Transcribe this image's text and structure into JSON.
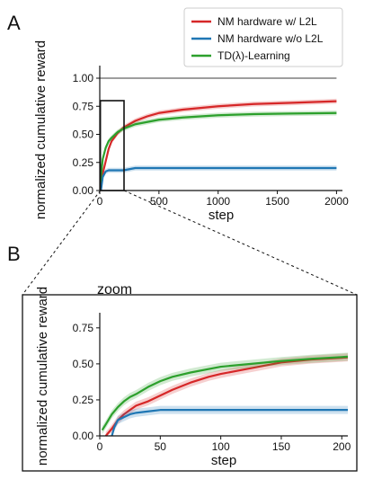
{
  "panels": {
    "a_label": "A",
    "b_label": "B",
    "zoom_title": "zoom"
  },
  "colors": {
    "red": "#d62728",
    "blue": "#1f77b4",
    "green": "#2ca02c",
    "reference": "#7f7f7f"
  },
  "legend": {
    "placement": "top-right",
    "items": [
      {
        "label": "NM hardware w/ L2L",
        "color": "#d62728"
      },
      {
        "label": "NM hardware w/o L2L",
        "color": "#1f77b4"
      },
      {
        "label": "TD(λ)-Learning",
        "color": "#2ca02c"
      }
    ]
  },
  "chart_data": [
    {
      "type": "line",
      "panel": "A",
      "xlabel": "step",
      "ylabel": "normalized cumulative reward",
      "xlim": [
        0,
        2050
      ],
      "ylim": [
        0,
        1.08
      ],
      "xticks": [
        0,
        500,
        1000,
        1500,
        2000
      ],
      "yticks": [
        "0.00",
        "0.25",
        "0.50",
        "0.75",
        "1.00"
      ],
      "reference_line": 1.0,
      "zoom_box": {
        "x": [
          5,
          205
        ],
        "y": [
          0,
          0.8
        ]
      },
      "series": [
        {
          "name": "NM hardware w/ L2L",
          "color": "#d62728",
          "x": [
            10,
            25,
            50,
            75,
            100,
            150,
            200,
            300,
            400,
            500,
            700,
            1000,
            1300,
            1600,
            2000
          ],
          "y": [
            0.05,
            0.15,
            0.26,
            0.37,
            0.44,
            0.51,
            0.56,
            0.62,
            0.66,
            0.69,
            0.72,
            0.75,
            0.77,
            0.78,
            0.795
          ]
        },
        {
          "name": "NM hardware w/o L2L",
          "color": "#1f77b4",
          "x": [
            10,
            25,
            50,
            75,
            100,
            150,
            200,
            300,
            500,
            800,
            1200,
            1600,
            2000
          ],
          "y": [
            0.0,
            0.12,
            0.17,
            0.18,
            0.18,
            0.18,
            0.18,
            0.2,
            0.2,
            0.2,
            0.2,
            0.2,
            0.2
          ]
        },
        {
          "name": "TD(λ)-Learning",
          "color": "#2ca02c",
          "x": [
            5,
            25,
            50,
            75,
            100,
            150,
            200,
            300,
            400,
            500,
            700,
            1000,
            1300,
            1600,
            2000
          ],
          "y": [
            0.07,
            0.28,
            0.38,
            0.44,
            0.47,
            0.52,
            0.55,
            0.59,
            0.61,
            0.63,
            0.65,
            0.67,
            0.68,
            0.685,
            0.69
          ]
        }
      ]
    },
    {
      "type": "line",
      "panel": "B",
      "title": "zoom",
      "xlabel": "step",
      "ylabel": "normalized cumulative reward",
      "xlim": [
        0,
        205
      ],
      "ylim": [
        0,
        0.83
      ],
      "xticks": [
        0,
        50,
        100,
        150,
        200
      ],
      "yticks": [
        "0.00",
        "0.25",
        "0.50",
        "0.75"
      ],
      "series": [
        {
          "name": "NM hardware w/ L2L",
          "color": "#d62728",
          "x": [
            5,
            10,
            15,
            20,
            25,
            30,
            40,
            50,
            60,
            75,
            90,
            100,
            125,
            150,
            175,
            205
          ],
          "y": [
            0.0,
            0.05,
            0.11,
            0.15,
            0.18,
            0.21,
            0.24,
            0.28,
            0.32,
            0.37,
            0.41,
            0.43,
            0.47,
            0.51,
            0.53,
            0.545
          ]
        },
        {
          "name": "NM hardware w/o L2L",
          "color": "#1f77b4",
          "x": [
            10,
            12,
            15,
            20,
            25,
            30,
            40,
            50,
            60,
            75,
            100,
            125,
            150,
            175,
            205
          ],
          "y": [
            0.0,
            0.06,
            0.11,
            0.13,
            0.15,
            0.16,
            0.17,
            0.18,
            0.18,
            0.18,
            0.18,
            0.18,
            0.18,
            0.18,
            0.18
          ]
        },
        {
          "name": "TD(λ)-Learning",
          "color": "#2ca02c",
          "x": [
            2,
            5,
            10,
            15,
            20,
            25,
            30,
            40,
            50,
            60,
            75,
            100,
            125,
            150,
            175,
            205
          ],
          "y": [
            0.04,
            0.08,
            0.15,
            0.2,
            0.24,
            0.27,
            0.29,
            0.34,
            0.38,
            0.41,
            0.44,
            0.48,
            0.5,
            0.52,
            0.535,
            0.55
          ]
        }
      ]
    }
  ]
}
